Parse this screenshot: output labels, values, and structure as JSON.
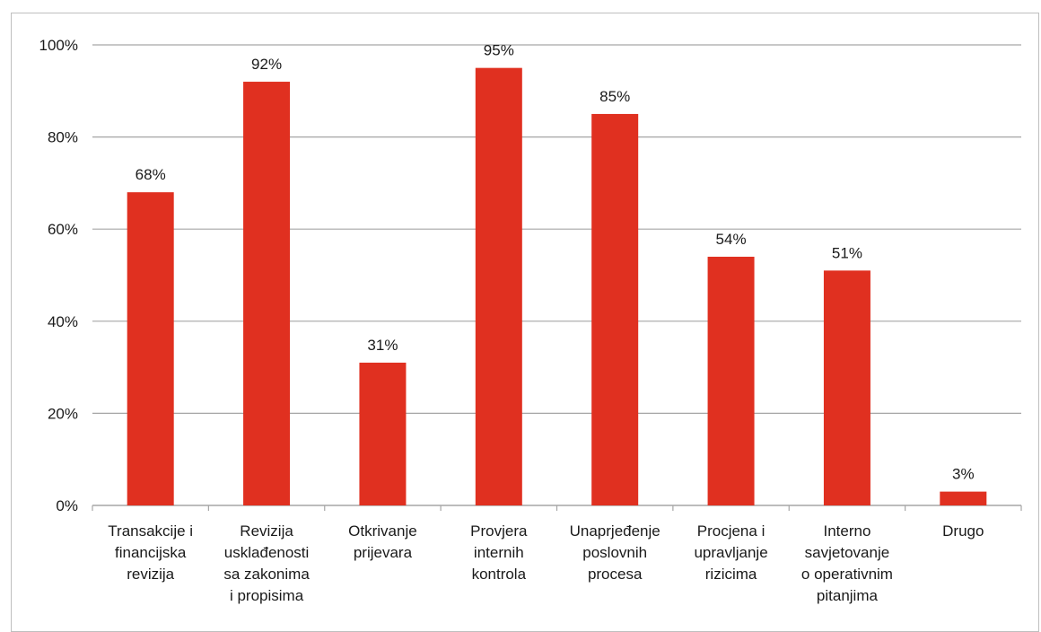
{
  "chart_data": {
    "type": "bar",
    "categories": [
      [
        "Transakcije i",
        "financijska",
        "revizija"
      ],
      [
        "Revizija",
        "usklađenosti",
        "sa zakonima",
        "i propisima"
      ],
      [
        "Otkrivanje",
        "prijevara"
      ],
      [
        "Provjera",
        "internih",
        "kontrola"
      ],
      [
        "Unaprjeđenje",
        "poslovnih",
        "procesa"
      ],
      [
        "Procjena i",
        "upravljanje",
        "rizicima"
      ],
      [
        "Interno",
        "savjetovanje",
        "o operativnim",
        "pitanjima"
      ],
      [
        "Drugo"
      ]
    ],
    "values": [
      68,
      92,
      31,
      95,
      85,
      54,
      51,
      3
    ],
    "data_labels": [
      "68%",
      "92%",
      "31%",
      "95%",
      "85%",
      "54%",
      "51%",
      "3%"
    ],
    "y_ticks": [
      "0%",
      "20%",
      "40%",
      "60%",
      "80%",
      "100%"
    ],
    "y_tick_values": [
      0,
      20,
      40,
      60,
      80,
      100
    ],
    "ylim": [
      0,
      100
    ],
    "grid": true,
    "bar_color": "#e03020",
    "grid_color": "#a6a6a6",
    "legend": "none"
  }
}
